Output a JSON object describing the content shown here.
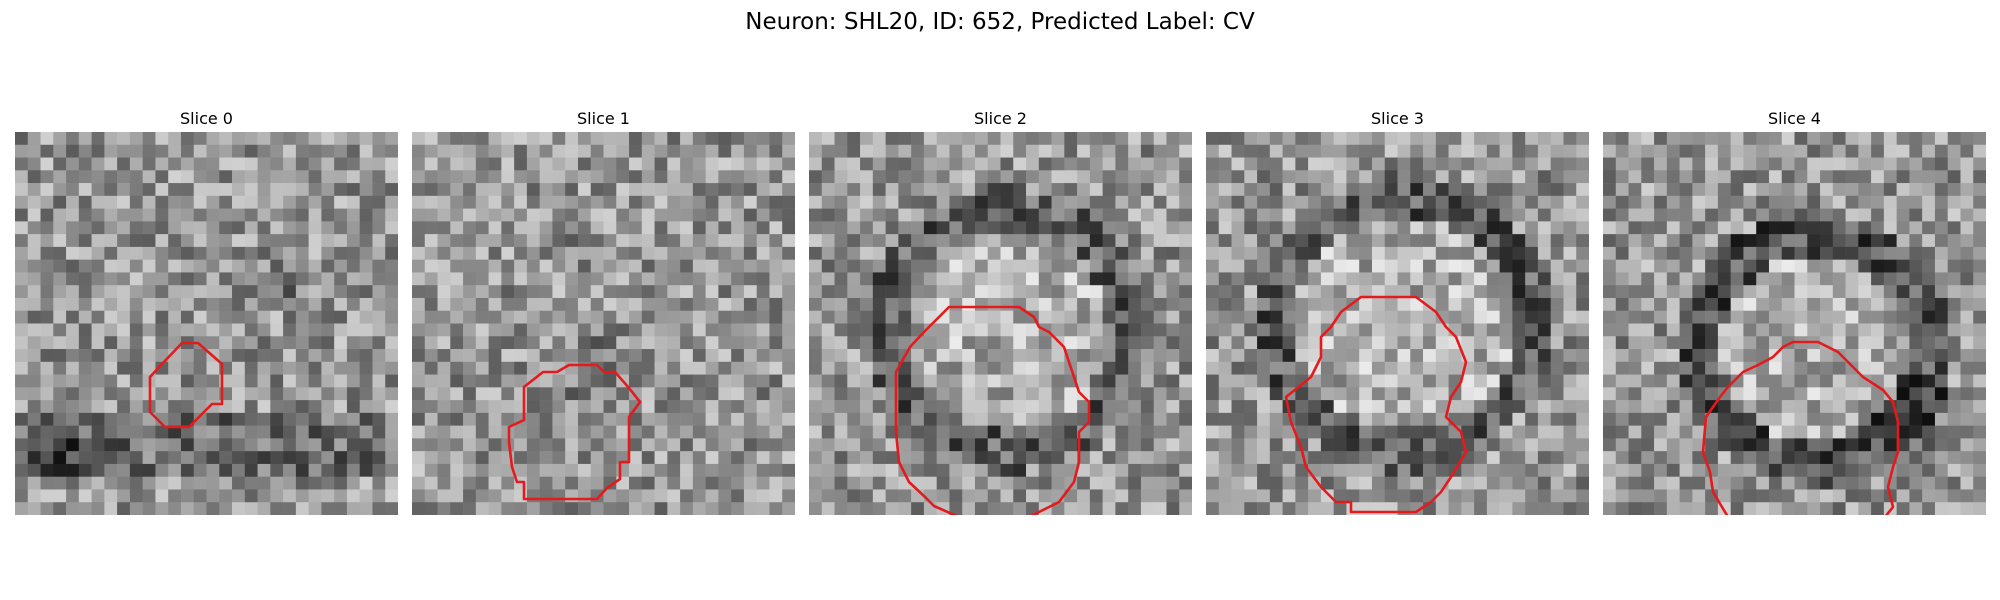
{
  "figure": {
    "title": "Neuron: SHL20, ID: 652, Predicted Label: CV"
  },
  "panels": [
    {
      "title": "Slice 0",
      "bg_seed": 11
    },
    {
      "title": "Slice 1",
      "bg_seed": 23
    },
    {
      "title": "Slice 2",
      "bg_seed": 37
    },
    {
      "title": "Slice 3",
      "bg_seed": 41
    },
    {
      "title": "Slice 4",
      "bg_seed": 59
    }
  ],
  "colors": {
    "contour": "#e41a1c",
    "text": "#000000"
  }
}
